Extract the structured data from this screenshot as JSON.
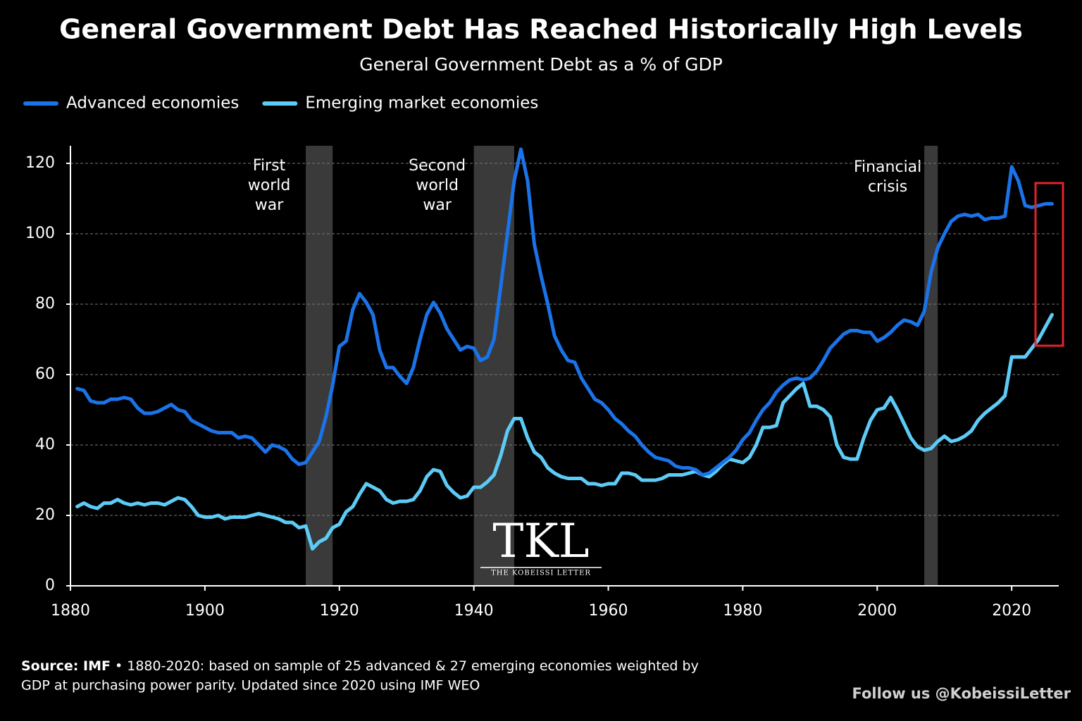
{
  "chart_data": {
    "type": "line",
    "title": "General Government Debt Has Reached Historically High Levels",
    "subtitle": "General Government Debt as a % of GDP",
    "x": [
      1881,
      1882,
      1883,
      1884,
      1885,
      1886,
      1887,
      1888,
      1889,
      1890,
      1891,
      1892,
      1893,
      1894,
      1895,
      1896,
      1897,
      1898,
      1899,
      1900,
      1901,
      1902,
      1903,
      1904,
      1905,
      1906,
      1907,
      1908,
      1909,
      1910,
      1911,
      1912,
      1913,
      1914,
      1915,
      1916,
      1917,
      1918,
      1919,
      1920,
      1921,
      1922,
      1923,
      1924,
      1925,
      1926,
      1927,
      1928,
      1929,
      1930,
      1931,
      1932,
      1933,
      1934,
      1935,
      1936,
      1937,
      1938,
      1939,
      1940,
      1941,
      1942,
      1943,
      1944,
      1945,
      1946,
      1947,
      1948,
      1949,
      1950,
      1951,
      1952,
      1953,
      1954,
      1955,
      1956,
      1957,
      1958,
      1959,
      1960,
      1961,
      1962,
      1963,
      1964,
      1965,
      1966,
      1967,
      1968,
      1969,
      1970,
      1971,
      1972,
      1973,
      1974,
      1975,
      1976,
      1977,
      1978,
      1979,
      1980,
      1981,
      1982,
      1983,
      1984,
      1985,
      1986,
      1987,
      1988,
      1989,
      1990,
      1991,
      1992,
      1993,
      1994,
      1995,
      1996,
      1997,
      1998,
      1999,
      2000,
      2001,
      2002,
      2003,
      2004,
      2005,
      2006,
      2007,
      2008,
      2009,
      2010,
      2011,
      2012,
      2013,
      2014,
      2015,
      2016,
      2017,
      2018,
      2019,
      2020,
      2021,
      2022,
      2023,
      2024,
      2025,
      2026
    ],
    "series": [
      {
        "name": "Advanced economies",
        "color": "#1a73e8",
        "values": [
          56,
          55.5,
          52.5,
          52,
          52,
          53,
          53,
          53.5,
          53,
          50.5,
          49,
          49,
          49.5,
          50.5,
          51.5,
          50,
          49.5,
          47,
          46,
          45,
          44,
          43.5,
          43.5,
          43.5,
          42,
          42.5,
          42,
          40,
          38,
          40,
          39.5,
          38.5,
          36,
          34.5,
          35,
          38,
          41,
          48,
          57,
          68,
          69.5,
          78.5,
          83,
          80.5,
          77,
          67,
          62,
          62,
          59.5,
          57.5,
          62,
          70,
          77,
          80.5,
          77.5,
          73,
          70,
          67,
          68,
          67.5,
          64,
          65,
          70,
          85,
          100,
          115,
          124,
          115,
          97,
          88,
          80,
          71,
          67,
          64,
          63.5,
          59,
          56,
          53,
          52,
          50,
          47.5,
          46,
          44,
          42.5,
          40,
          38,
          36.5,
          36,
          35.5,
          34,
          33.5,
          33.5,
          33,
          31.5,
          32,
          33.5,
          35,
          36.5,
          38.5,
          41.5,
          43.5,
          47,
          50,
          52,
          55,
          57,
          58.5,
          59,
          58.5,
          59,
          61,
          64,
          67.5,
          69.5,
          71.5,
          72.5,
          72.5,
          72,
          72,
          69.5,
          70.5,
          72,
          74,
          75.5,
          75,
          74,
          78,
          89,
          96,
          100,
          103.5,
          105,
          105.5,
          105,
          105.5,
          104,
          104.5,
          104.5,
          105,
          119,
          115,
          108,
          107.5,
          108,
          108.5,
          108.5
        ]
      },
      {
        "name": "Emerging market economies",
        "color": "#5ccbf5",
        "values": [
          22.5,
          23.5,
          22.5,
          22,
          23.5,
          23.5,
          24.5,
          23.5,
          23,
          23.5,
          23,
          23.5,
          23.5,
          23,
          24,
          25,
          24.5,
          22.5,
          20,
          19.5,
          19.5,
          20,
          19,
          19.5,
          19.5,
          19.5,
          20,
          20.5,
          20,
          19.5,
          19,
          18,
          18,
          16.5,
          17,
          10.5,
          12.5,
          13.5,
          16.5,
          17.5,
          21,
          22.5,
          26,
          29,
          28,
          27,
          24.5,
          23.5,
          24,
          24,
          24.5,
          27,
          31,
          33,
          32.5,
          28.5,
          26.5,
          25,
          25.5,
          28,
          28,
          29.5,
          31.5,
          37,
          44,
          47.5,
          47.5,
          42,
          38,
          36.5,
          33.5,
          32,
          31,
          30.5,
          30.5,
          30.5,
          29,
          29,
          28.5,
          29,
          29,
          32,
          32,
          31.5,
          30,
          30,
          30,
          30.5,
          31.5,
          31.5,
          31.5,
          32,
          32.5,
          31.5,
          31,
          32.5,
          34.5,
          36,
          35.5,
          35,
          36.5,
          40,
          45,
          45,
          45.5,
          52,
          54,
          56,
          57.5,
          51,
          51,
          50,
          48,
          40,
          36.5,
          36,
          36,
          42,
          47,
          50,
          50.5,
          53.5,
          50,
          46,
          42,
          39.5,
          38.5,
          39,
          41,
          42.5,
          41,
          41.5,
          42.5,
          44,
          47,
          49,
          50.5,
          52,
          54,
          65,
          65,
          65,
          67.5,
          70,
          73.5,
          77
        ]
      }
    ],
    "xlim": [
      1880,
      2027
    ],
    "xticks": [
      1880,
      1900,
      1920,
      1940,
      1960,
      1980,
      2000,
      2020
    ],
    "ylim": [
      0,
      125
    ],
    "yticks": [
      0,
      20,
      40,
      60,
      80,
      100,
      120
    ],
    "grid": true,
    "legend": "top-left",
    "shaded_periods": [
      {
        "label": [
          "First",
          "world",
          "war"
        ],
        "start": 1915,
        "end": 1919
      },
      {
        "label": [
          "Second",
          "world",
          "war"
        ],
        "start": 1940,
        "end": 1946
      },
      {
        "label": [
          "Financial",
          "crisis"
        ],
        "start": 2007,
        "end": 2009
      }
    ],
    "logo": {
      "mark": "TKL",
      "name": "THE KOBEISSI LETTER"
    },
    "source": {
      "label": "Source: IMF",
      "lines": [
        "• 1880-2020: based on sample of 25 advanced & 27 emerging economies weighted by",
        "GDP at purchasing power parity. Updated since 2020 using IMF WEO"
      ]
    },
    "follow": "Follow us @KobeissiLetter"
  }
}
